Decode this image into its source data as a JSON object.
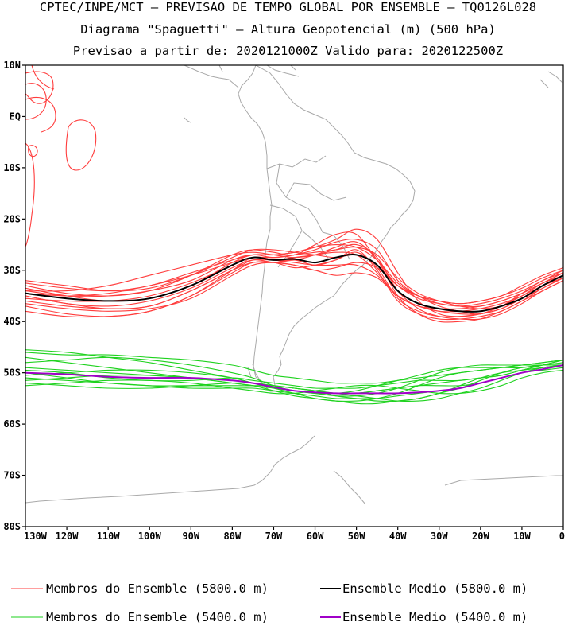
{
  "chart_data": {
    "type": "line",
    "title": "CPTEC/INPE/MCT — PREVISAO DE TEMPO GLOBAL POR ENSEMBLE — TQ0126L028",
    "subtitle": "Diagrama \"Spaguetti\" — Altura Geopotencial (m) (500 hPa)",
    "subtitle2": "Previsao a partir de: 2020121000Z  Valido para: 2020122500Z",
    "xlim": [
      -130,
      0
    ],
    "ylim": [
      -80,
      10
    ],
    "x_ticks": [
      -130,
      -120,
      -110,
      -100,
      -90,
      -80,
      -70,
      -60,
      -50,
      -40,
      -30,
      -20,
      -10,
      0
    ],
    "x_tick_labels": [
      "130W",
      "120W",
      "110W",
      "100W",
      "90W",
      "80W",
      "70W",
      "60W",
      "50W",
      "40W",
      "30W",
      "20W",
      "10W",
      "0"
    ],
    "y_ticks": [
      10,
      0,
      -10,
      -20,
      -30,
      -40,
      -50,
      -60,
      -70,
      -80
    ],
    "y_tick_labels": [
      "10N",
      "EQ",
      "10S",
      "20S",
      "30S",
      "40S",
      "50S",
      "60S",
      "70S",
      "80S"
    ],
    "grid": false,
    "legend_position": "bottom",
    "colors": {
      "members_5800": "#ff3c3c",
      "mean_5800": "#000000",
      "members_5400": "#1ed21e",
      "mean_5400": "#a000c8",
      "coast": "#a9a9a9"
    },
    "legend": [
      {
        "label": "Membros do Ensemble (5800.0 m)",
        "color": "#ff3c3c"
      },
      {
        "label": "Ensemble Medio (5800.0 m)",
        "color": "#000000"
      },
      {
        "label": "Membros do Ensemble (5400.0 m)",
        "color": "#1ed21e"
      },
      {
        "label": "Ensemble Medio (5400.0 m)",
        "color": "#a000c8"
      }
    ],
    "x": [
      -130,
      -120,
      -110,
      -100,
      -90,
      -80,
      -75,
      -70,
      -65,
      -60,
      -55,
      -50,
      -45,
      -40,
      -35,
      -30,
      -25,
      -20,
      -15,
      -10,
      -5,
      0
    ],
    "series": [
      {
        "name": "Ensemble Medio (5800.0 m)",
        "level": 5800,
        "kind": "mean",
        "values": [
          -34.5,
          -35.5,
          -36,
          -35.5,
          -33,
          -29,
          -27.5,
          -28,
          -27.8,
          -28.5,
          -27.5,
          -27,
          -29,
          -34,
          -36.5,
          -37.5,
          -38,
          -38,
          -37,
          -35.5,
          -33,
          -31
        ]
      },
      {
        "name": "Ensemble Medio (5400.0 m)",
        "level": 5400,
        "kind": "mean",
        "values": [
          -50,
          -50.3,
          -50.8,
          -51,
          -51,
          -51.5,
          -52,
          -52.8,
          -53.5,
          -53.8,
          -54,
          -54,
          -54,
          -54,
          -53.8,
          -53.5,
          -53,
          -52,
          -51,
          -50,
          -49.3,
          -48.5
        ]
      },
      {
        "name": "Membros do Ensemble (5800.0 m)",
        "level": 5800,
        "kind": "member",
        "members": [
          [
            -33,
            -34.5,
            -35,
            -34,
            -31,
            -27,
            -26,
            -26.5,
            -27,
            -25,
            -23,
            -23,
            -28,
            -33,
            -35,
            -36,
            -36.5,
            -36,
            -35,
            -33,
            -31,
            -29.5
          ],
          [
            -36,
            -37,
            -37.5,
            -37,
            -34,
            -30,
            -28.5,
            -28.5,
            -28,
            -29,
            -28,
            -26,
            -30,
            -36,
            -38.5,
            -39.5,
            -39.5,
            -39,
            -38,
            -36,
            -34,
            -32
          ],
          [
            -34,
            -35,
            -35,
            -34,
            -32,
            -28,
            -27,
            -27.5,
            -27,
            -26,
            -24.5,
            -24,
            -26,
            -32,
            -35,
            -37,
            -38,
            -38.5,
            -37,
            -35,
            -32.5,
            -30.5
          ],
          [
            -35,
            -36.5,
            -37,
            -36,
            -33.5,
            -29.5,
            -28,
            -28.5,
            -29,
            -30,
            -29.5,
            -28.5,
            -29.5,
            -33,
            -35,
            -36.5,
            -37,
            -37,
            -36,
            -34.5,
            -32.5,
            -31
          ],
          [
            -32.5,
            -33.5,
            -34,
            -33,
            -30.5,
            -28,
            -27,
            -27,
            -26.5,
            -25.5,
            -24,
            -22,
            -24,
            -30.5,
            -36,
            -38.5,
            -39,
            -38.5,
            -37,
            -34.5,
            -32,
            -30.5
          ],
          [
            -37,
            -38.5,
            -39,
            -38,
            -35,
            -30,
            -27.5,
            -28,
            -28.5,
            -29,
            -29,
            -29,
            -31,
            -35,
            -37,
            -38,
            -38.5,
            -38.5,
            -37.5,
            -35.5,
            -33,
            -31.5
          ],
          [
            -34,
            -34,
            -33,
            -31,
            -29,
            -27,
            -26.5,
            -27,
            -27.5,
            -27,
            -26,
            -25,
            -27.5,
            -34,
            -37.5,
            -39,
            -39.5,
            -39.5,
            -38.5,
            -36.5,
            -34,
            -32
          ],
          [
            -36.5,
            -37.5,
            -38,
            -37.5,
            -35.5,
            -31,
            -29,
            -28.5,
            -29,
            -30,
            -31,
            -30.5,
            -31.5,
            -35,
            -37,
            -38,
            -38,
            -37.5,
            -36.5,
            -35,
            -33,
            -31.5
          ],
          [
            -33.5,
            -35,
            -36,
            -35.5,
            -33,
            -28.5,
            -27,
            -27,
            -26.5,
            -25.5,
            -25,
            -25.5,
            -28,
            -32.5,
            -35,
            -36,
            -36.5,
            -36,
            -35,
            -33.5,
            -31.5,
            -30
          ],
          [
            -35.5,
            -36,
            -36,
            -35,
            -32.5,
            -29,
            -27.5,
            -28,
            -28,
            -27,
            -25.5,
            -24.5,
            -28,
            -35,
            -38.5,
            -40,
            -40,
            -39.5,
            -38,
            -36,
            -33.5,
            -31.5
          ],
          [
            -32,
            -33,
            -34,
            -33.5,
            -31,
            -27.5,
            -26,
            -26,
            -26.5,
            -27,
            -27.5,
            -27,
            -29,
            -33,
            -35.5,
            -36.5,
            -37,
            -36.5,
            -35.5,
            -34,
            -32,
            -30
          ],
          [
            -38,
            -39,
            -39,
            -38,
            -35,
            -30.5,
            -28.5,
            -28.5,
            -29.5,
            -29,
            -28,
            -26.5,
            -29.5,
            -35.5,
            -38,
            -39,
            -39,
            -38.5,
            -37.5,
            -35.5,
            -33,
            -31
          ],
          [
            -34.5,
            -35,
            -34.5,
            -33,
            -31,
            -28.5,
            -27.5,
            -27.5,
            -27,
            -26.5,
            -26,
            -25.5,
            -27,
            -31.5,
            -34.5,
            -36,
            -37,
            -37.5,
            -37,
            -35.5,
            -33.5,
            -31.5
          ],
          [
            -35,
            -36.5,
            -37.5,
            -37,
            -34,
            -30,
            -28,
            -28,
            -27.5,
            -27,
            -26.5,
            -27,
            -30.5,
            -35,
            -37,
            -37.5,
            -37.5,
            -37,
            -36,
            -34.5,
            -32.5,
            -30.5
          ]
        ]
      },
      {
        "name": "Membros do Ensemble (5400.0 m)",
        "level": 5400,
        "kind": "member",
        "members": [
          [
            -46,
            -46.5,
            -46.5,
            -47,
            -47.5,
            -48.5,
            -49.5,
            -50.5,
            -51,
            -51.5,
            -52,
            -52,
            -52,
            -51.5,
            -51,
            -50.5,
            -50,
            -49.5,
            -49,
            -48.5,
            -48,
            -47.5
          ],
          [
            -51,
            -51.5,
            -52,
            -52.5,
            -53,
            -53,
            -53,
            -53.5,
            -54,
            -54.5,
            -55,
            -55,
            -55,
            -54.5,
            -54,
            -53.5,
            -53,
            -52,
            -51,
            -50,
            -49.5,
            -49
          ],
          [
            -48,
            -47.5,
            -47,
            -47.5,
            -48.5,
            -50,
            -51,
            -52.5,
            -53.5,
            -54,
            -54.5,
            -54.5,
            -54,
            -53,
            -51.5,
            -50,
            -49,
            -48.5,
            -48.5,
            -48.5,
            -48.5,
            -48.5
          ],
          [
            -52,
            -52.5,
            -53,
            -53,
            -52.5,
            -52,
            -52,
            -52.5,
            -53,
            -53.5,
            -54,
            -54.5,
            -55,
            -55.5,
            -55.5,
            -55,
            -54,
            -53,
            -51.5,
            -50,
            -49,
            -48.5
          ],
          [
            -49.5,
            -50,
            -51,
            -51.5,
            -51.5,
            -51,
            -51.5,
            -52,
            -52.5,
            -53,
            -53,
            -53,
            -52.5,
            -52,
            -51.5,
            -51.5,
            -51.5,
            -51,
            -50.5,
            -49.5,
            -48.5,
            -47.5
          ],
          [
            -50.5,
            -50,
            -49.5,
            -49.5,
            -50,
            -51,
            -52,
            -53,
            -54,
            -55,
            -55.5,
            -56,
            -56,
            -55.5,
            -55,
            -54,
            -53,
            -51.5,
            -50,
            -49,
            -48.5,
            -48.5
          ],
          [
            -47,
            -48,
            -49,
            -50,
            -51,
            -52,
            -52.5,
            -53,
            -53.5,
            -54,
            -54,
            -53.5,
            -52.5,
            -51.5,
            -50.5,
            -49.5,
            -49,
            -49,
            -49,
            -49,
            -48.5,
            -48
          ],
          [
            -52.5,
            -52,
            -51.5,
            -51.5,
            -52,
            -53,
            -53.5,
            -54,
            -54,
            -53.5,
            -53,
            -52.5,
            -52.5,
            -53,
            -53.5,
            -54,
            -54,
            -53.5,
            -52.5,
            -51,
            -50,
            -49.5
          ],
          [
            -49,
            -49.5,
            -50,
            -50.5,
            -51,
            -52,
            -52.5,
            -53.5,
            -54.5,
            -55,
            -55.5,
            -55.5,
            -55,
            -54,
            -52.5,
            -51,
            -50,
            -49.5,
            -49,
            -48.5,
            -48,
            -47.5
          ],
          [
            -51.5,
            -51,
            -50.5,
            -50.5,
            -51,
            -51.5,
            -52,
            -52.5,
            -53,
            -53.5,
            -54,
            -54,
            -53.5,
            -53,
            -52.5,
            -52.5,
            -52.5,
            -52,
            -51,
            -50,
            -49,
            -48.5
          ],
          [
            -45.5,
            -46,
            -47,
            -48,
            -49.5,
            -51,
            -52,
            -53,
            -53.5,
            -54,
            -54,
            -54,
            -53.5,
            -53,
            -52.5,
            -52,
            -51.5,
            -51,
            -50.5,
            -49.5,
            -48.5,
            -47.5
          ],
          [
            -50,
            -51,
            -52,
            -52.5,
            -52.5,
            -52.5,
            -52.5,
            -52.5,
            -53,
            -53.5,
            -54.5,
            -55,
            -55.5,
            -55.5,
            -55,
            -54,
            -52.5,
            -51,
            -50,
            -49.5,
            -49,
            -48.5
          ]
        ]
      }
    ]
  }
}
